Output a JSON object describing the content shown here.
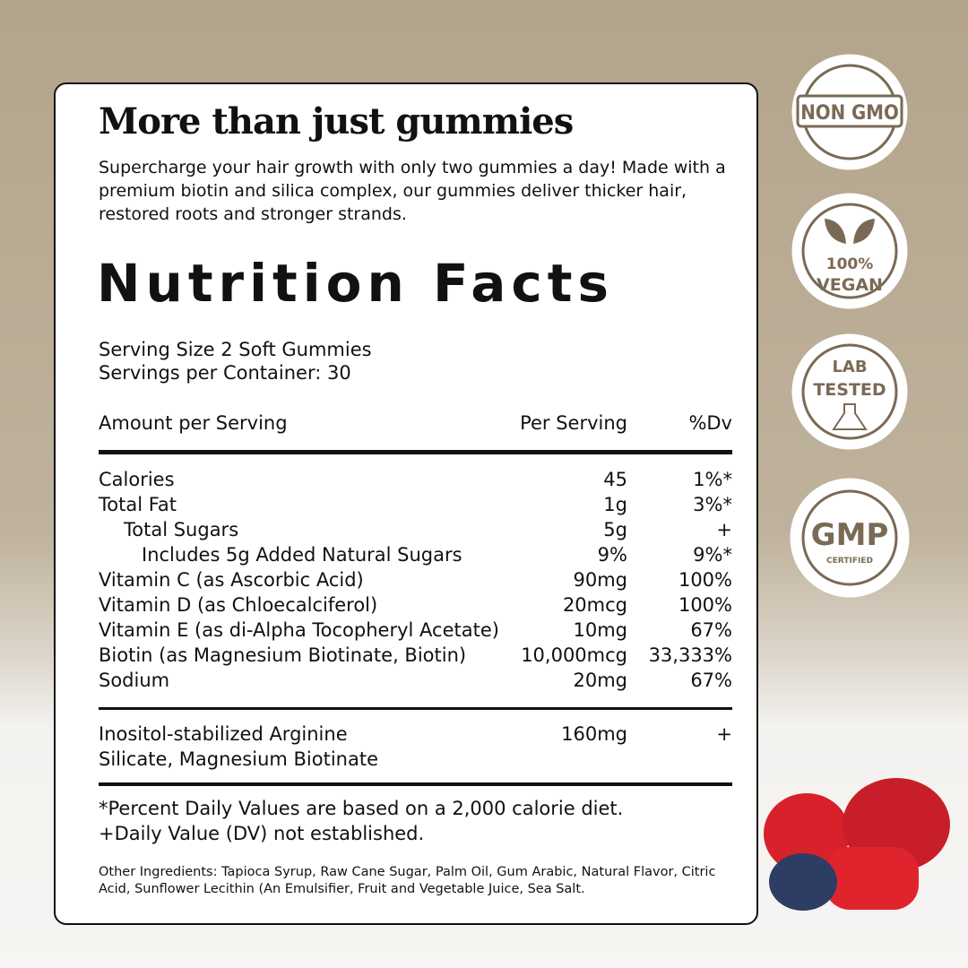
{
  "heading": "More than just gummies",
  "description": "Supercharge your hair growth with only two gummies a day! Made with a premium biotin and silica complex, our gummies deliver thicker hair, restored roots and stronger strands.",
  "facts_title": "Nutrition Facts",
  "serving_size": "Serving Size 2 Soft Gummies",
  "servings_per_container": "Servings per Container: 30",
  "table": {
    "header": [
      "Amount per Serving",
      "Per Serving",
      "%Dv"
    ],
    "rows": [
      [
        "Calories",
        "45",
        "1%*"
      ],
      [
        "Total Fat",
        "1g",
        "3%*"
      ],
      [
        "Total Sugars",
        "5g",
        "+"
      ],
      [
        "Includes 5g Added Natural Sugars",
        "9%",
        "9%*"
      ],
      [
        "Vitamin C (as Ascorbic Acid)",
        "90mg",
        "100%"
      ],
      [
        "Vitamin D (as Chloecalciferol)",
        "20mcg",
        "100%"
      ],
      [
        "Vitamin E (as di-Alpha Tocopheryl Acetate)",
        "10mg",
        "67%"
      ],
      [
        "Biotin (as Magnesium Biotinate, Biotin)",
        "10,000mcg",
        "33,333%"
      ],
      [
        "Sodium",
        "20mg",
        "67%"
      ]
    ],
    "extra": [
      [
        "Inositol-stabilized Arginine",
        "160mg",
        "+"
      ],
      [
        "Silicate, Magnesium Biotinate"
      ]
    ]
  },
  "footnotes": [
    "*Percent Daily Values are based on a 2,000 calorie diet.",
    "+Daily Value (DV) not established."
  ],
  "ingredients": "Other Ingredients: Tapioca Syrup, Raw Cane Sugar, Palm Oil, Gum Arabic, Natural Flavor, Citric Acid, Sunflower Lecithin (An Emulsifier, Fruit and Vegetable Juice, Sea Salt.",
  "badges": [
    {
      "label": "NON GMO"
    },
    {
      "label": "100%",
      "sublabel": "VEGAN"
    },
    {
      "label": "LAB",
      "sublabel": "TESTED"
    },
    {
      "label": "GMP",
      "sublabel": "CERTIFIED"
    }
  ]
}
